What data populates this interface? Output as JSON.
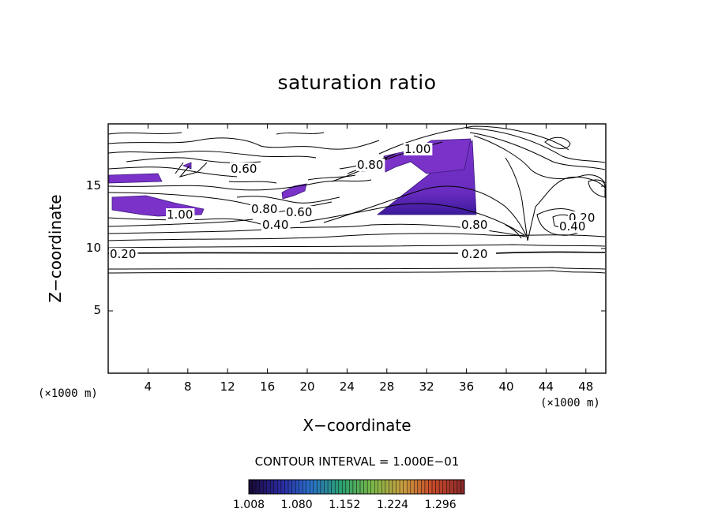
{
  "chart_data": {
    "type": "heatmap",
    "title": "saturation ratio",
    "xlabel": "X−coordinate",
    "ylabel": "Z−coordinate",
    "x_unit_note": "(×1000 m)",
    "y_unit_note": "(×1000 m)",
    "xlim": [
      0,
      50
    ],
    "ylim": [
      0,
      20
    ],
    "x_ticks": [
      4,
      8,
      12,
      16,
      20,
      24,
      28,
      32,
      36,
      40,
      44,
      48
    ],
    "y_ticks": [
      5,
      10,
      15
    ],
    "contour_interval_label": "CONTOUR INTERVAL = 1.000E−01",
    "contour_labels": [
      "0.20",
      "0.20",
      "0.20",
      "0.40",
      "0.40",
      "0.60",
      "0.60",
      "0.80",
      "0.80",
      "0.80",
      "1.00",
      "1.00"
    ],
    "colorbar": {
      "min": 1.008,
      "max": 1.332,
      "tick_labels": [
        "1.008",
        "1.080",
        "1.152",
        "1.224",
        "1.296"
      ],
      "colors": [
        "#1a0a3a",
        "#2a2aa0",
        "#2a70c8",
        "#2aa070",
        "#7ab84a",
        "#c8a040",
        "#c84a2a",
        "#8a2a2a"
      ]
    },
    "colors": {
      "fill": "#7a32c8",
      "fill_dark": "#3a1a9a",
      "contour": "#000000"
    }
  }
}
